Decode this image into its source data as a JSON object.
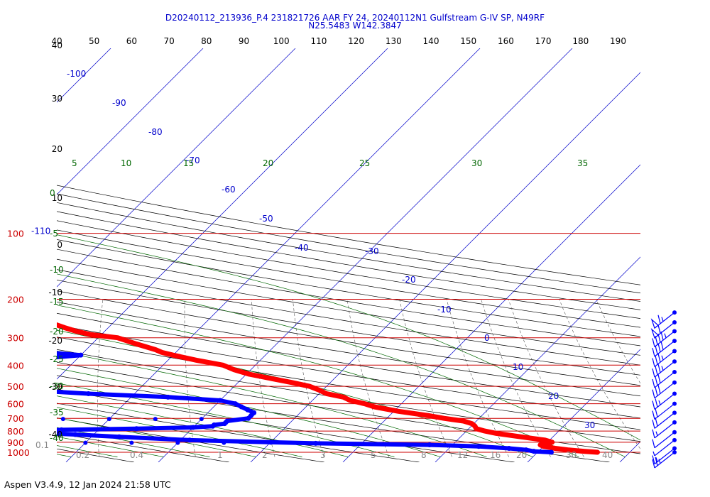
{
  "header": {
    "title_line1": "D20240112_213936_P.4 231821726 AAR FY 24, 20240112N1 Gulfstream G-IV SP, N49RF",
    "title_line2": "N25.5483 W142.3847"
  },
  "footer": {
    "text": "Aspen V3.4.9, 12 Jan 2024  21:58 UTC"
  },
  "chart_data": {
    "type": "skew-t",
    "title": "D20240112_213936_P.4 231821726 AAR FY 24, 20240112N1 Gulfstream G-IV SP, N49RF N25.5483 W142.3847",
    "colors": {
      "temperature": "#ff0000",
      "dewpoint": "#0000ff",
      "isobar": "#cc0000",
      "isotherm": "#0000cc",
      "dry_adiabat": "#000000",
      "moist_adiabat": "#006600",
      "mixing_ratio": "#555555",
      "wind_barb": "#0000ff"
    },
    "pressure_labels": [
      "100",
      "200",
      "300",
      "400",
      "500",
      "600",
      "700",
      "800",
      "900",
      "1000"
    ],
    "altitude_labels_km": [
      "40",
      "30",
      "20",
      "10",
      "0",
      "-10",
      "-20",
      "-30",
      "-40"
    ],
    "top_temperature_labels": [
      "-110",
      "40",
      "50",
      "60",
      "70",
      "80",
      "90",
      "100",
      "110",
      "120",
      "130",
      "140",
      "150",
      "160",
      "170",
      "180",
      "190"
    ],
    "isotherm_labels": [
      "-100",
      "-90",
      "-80",
      "-70",
      "-60",
      "-50",
      "-40",
      "-30",
      "-20",
      "-10",
      "0",
      "10",
      "20",
      "30"
    ],
    "moist_adiabat_labels_top": [
      "5",
      "10",
      "15",
      "20",
      "25",
      "30",
      "35"
    ],
    "moist_adiabat_labels_left": [
      "0",
      "-5",
      "-10",
      "-15",
      "-20",
      "-25",
      "-30",
      "-35",
      "-40"
    ],
    "mixing_ratio_labels": [
      "0.1",
      "0.2",
      "0.4",
      "1",
      "2",
      "3",
      "5",
      "8",
      "12",
      "16",
      "20",
      "30",
      "40"
    ],
    "temperature_profile": {
      "pressure_hPa": [
        1000,
        990,
        975,
        960,
        940,
        925,
        910,
        900,
        880,
        850,
        820,
        800,
        780,
        760,
        740,
        720,
        700,
        680,
        650,
        620,
        600,
        580,
        560,
        540,
        520,
        500,
        480,
        460,
        440,
        420,
        400,
        380,
        360,
        350,
        340,
        320,
        300,
        290,
        280,
        270,
        260,
        250,
        240,
        230,
        220
      ],
      "temp_C": [
        26.5,
        25.0,
        23.0,
        21.5,
        20.0,
        19.5,
        20.0,
        20.5,
        19.5,
        16.5,
        13.5,
        12.0,
        10.8,
        10.4,
        9.8,
        8.6,
        6.2,
        4.2,
        0.5,
        -2.6,
        -4.0,
        -5.9,
        -7.0,
        -9.2,
        -10.4,
        -11.8,
        -14.2,
        -16.9,
        -19.7,
        -21.8,
        -23.5,
        -26.9,
        -30.0,
        -31.5,
        -32.5,
        -35.2,
        -37.9,
        -41.2,
        -43.1,
        -44.7,
        -46.2,
        -47.2,
        -48.8,
        -50.0,
        -52.0
      ]
    },
    "dewpoint_profile": {
      "pressure_hPa": [
        1000,
        990,
        975,
        960,
        940,
        925,
        910,
        900,
        880,
        850,
        830,
        820,
        810,
        800,
        790,
        780,
        770,
        760,
        750,
        740,
        730,
        720,
        700,
        680,
        660,
        640,
        620,
        600,
        580,
        560,
        540,
        520,
        500,
        480,
        460,
        450,
        440,
        430,
        420,
        400,
        380,
        370,
        360,
        350,
        340,
        330,
        320,
        310,
        300,
        290,
        280,
        270,
        260,
        250,
        240
      ],
      "dewpoint_C": [
        21.5,
        19.5,
        18.5,
        16.5,
        13.0,
        7.5,
        -5.0,
        -10.0,
        -19.0,
        -27.0,
        -32.0,
        -35.0,
        -36.0,
        -37.0,
        -34.0,
        -26.0,
        -20.0,
        -18.0,
        -18.0,
        -17.0,
        -17.0,
        -17.0,
        -15.0,
        -15.0,
        -15.0,
        -16.0,
        -17.0,
        -18.0,
        -20.0,
        -26.0,
        -35.0,
        -42.0,
        -42.0,
        -44.0,
        -43.0,
        -42.0,
        -47.0,
        -48.0,
        -47.0,
        -43.0,
        -43.0,
        -43.0,
        -40.0,
        -44.0,
        -51.0,
        -56.0,
        -58.0,
        -57.0,
        -57.0,
        -58.0,
        -58.0,
        -58.0,
        -59.0,
        -62.0,
        -66.0
      ]
    },
    "dewpoint_dry_spikes": [
      {
        "pressure_hPa": 905,
        "dewpoint_C": [
          -15,
          -20,
          -25,
          -30,
          -35,
          -40,
          -45,
          -50,
          -55,
          -60,
          -65,
          -70,
          -75
        ]
      },
      {
        "pressure_hPa": 820,
        "dewpoint_C": [
          -40,
          -45,
          -50,
          -55,
          -60,
          -65,
          -70,
          -75
        ]
      },
      {
        "pressure_hPa": 705,
        "dewpoint_C": [
          -20,
          -25,
          -30,
          -35,
          -40,
          -45,
          -50
        ]
      },
      {
        "pressure_hPa": 575,
        "dewpoint_C": [
          -40,
          -45,
          -50,
          -55,
          -60
        ]
      },
      {
        "pressure_hPa": 385,
        "dewpoint_C": [
          -44,
          -47,
          -50
        ]
      }
    ],
    "wind_profile_kt": [
      {
        "pressure_hPa": 230,
        "speed_kt": 65
      },
      {
        "pressure_hPa": 255,
        "speed_kt": 60
      },
      {
        "pressure_hPa": 280,
        "speed_kt": 45
      },
      {
        "pressure_hPa": 310,
        "speed_kt": 40
      },
      {
        "pressure_hPa": 345,
        "speed_kt": 35
      },
      {
        "pressure_hPa": 385,
        "speed_kt": 35
      },
      {
        "pressure_hPa": 430,
        "speed_kt": 30
      },
      {
        "pressure_hPa": 480,
        "speed_kt": 30
      },
      {
        "pressure_hPa": 540,
        "speed_kt": 25
      },
      {
        "pressure_hPa": 600,
        "speed_kt": 20
      },
      {
        "pressure_hPa": 660,
        "speed_kt": 20
      },
      {
        "pressure_hPa": 730,
        "speed_kt": 15
      },
      {
        "pressure_hPa": 810,
        "speed_kt": 10
      },
      {
        "pressure_hPa": 880,
        "speed_kt": 5
      },
      {
        "pressure_hPa": 960,
        "speed_kt": 15
      },
      {
        "pressure_hPa": 1000,
        "speed_kt": 25
      }
    ]
  }
}
